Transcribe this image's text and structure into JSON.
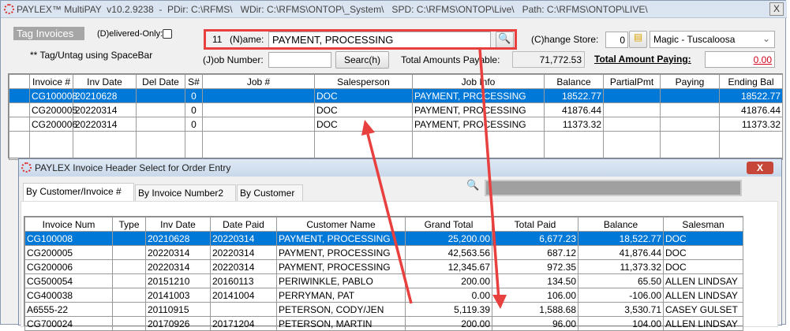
{
  "window": {
    "title": "PAYLEX™ MultiPAY  v10.2.9238  -  PDir: C:\\RFMS\\   WDir: C:\\RFMS\\ONTOP\\_System\\   SPD: C:\\RFMS\\ONTOP\\Live\\   Path: C:\\RFMS\\ONTOP\\LIVE\\",
    "close": "X"
  },
  "toolbar": {
    "tag_invoices": "Tag Invoices",
    "delivered_only": "(D)elivered-Only:",
    "hint": "** Tag/Untag using SpaceBar",
    "name_count": "11",
    "name_label": "(N)ame:",
    "name_value": "PAYMENT, PROCESSING",
    "change_store": "(C)hange Store:",
    "store_num": "0",
    "store_name": "Magic - Tuscaloosa",
    "job_label": "(J)ob Number:",
    "job_value": "",
    "search": "Searc(h)",
    "total_payable_label": "Total Amounts Payable:",
    "total_payable": "71,772.53",
    "total_paying_label": "Total Amount Paying:",
    "total_paying": "0.00"
  },
  "invoices": {
    "columns": [
      "Invoice #",
      "Inv Date",
      "Del Date",
      "S#",
      "Job #",
      "Salesperson",
      "Job Info",
      "Balance",
      "PartialPmt",
      "Paying",
      "Ending Bal"
    ],
    "rows": [
      [
        "CG100008",
        "20210628",
        "",
        "0",
        "",
        "DOC",
        "PAYMENT, PROCESSING",
        "18522.77",
        "",
        "",
        "18522.77"
      ],
      [
        "CG200005",
        "20220314",
        "",
        "0",
        "",
        "DOC",
        "PAYMENT, PROCESSING",
        "41876.44",
        "",
        "",
        "41876.44"
      ],
      [
        "CG200006",
        "20220314",
        "",
        "0",
        "",
        "DOC",
        "PAYMENT, PROCESSING",
        "11373.32",
        "",
        "",
        "11373.32"
      ]
    ]
  },
  "dialog": {
    "title": "PAYLEX Invoice Header Select for Order Entry",
    "close": "X",
    "tabs": [
      "By Customer/Invoice #",
      "By Invoice Number2",
      "By Customer"
    ],
    "search_value": "",
    "columns": [
      "Invoice Num",
      "Type",
      "Inv Date",
      "Date Paid",
      "Customer Name",
      "Grand Total",
      "Total Paid",
      "Balance",
      "Salesman"
    ],
    "rows": [
      [
        "CG100008",
        "",
        "20210628",
        "20220314",
        "PAYMENT, PROCESSING",
        "25,200.00",
        "6,677.23",
        "18,522.77",
        "DOC"
      ],
      [
        "CG200005",
        "",
        "20220314",
        "20220314",
        "PAYMENT, PROCESSING",
        "42,563.56",
        "687.12",
        "41,876.44",
        "DOC"
      ],
      [
        "CG200006",
        "",
        "20220314",
        "20220314",
        "PAYMENT, PROCESSING",
        "12,345.67",
        "972.35",
        "11,373.32",
        "DOC"
      ],
      [
        "CG500054",
        "",
        "20151210",
        "20160113",
        "PERIWINKLE, PABLO",
        "200.00",
        "134.50",
        "65.50",
        "ALLEN LINDSAY"
      ],
      [
        "CG400038",
        "",
        "20141003",
        "20141004",
        "PERRYMAN, PAT",
        "0.00",
        "106.00",
        "-106.00",
        "ALLEN LINDSAY"
      ],
      [
        "A6555-22",
        "",
        "20110915",
        "",
        "PETERSON, CODY/JEN",
        "5,119.39",
        "1,588.68",
        "3,530.71",
        "CASEY GULSET"
      ],
      [
        "CG700024",
        "",
        "20170926",
        "20171204",
        "PETERSON, MARTIN",
        "200.00",
        "96.00",
        "104.00",
        "ALLEN LINDSAY"
      ]
    ]
  },
  "colors": {
    "selection": "#0078d7",
    "annotation": "#e8403f",
    "paying_total": "#d0021b"
  }
}
